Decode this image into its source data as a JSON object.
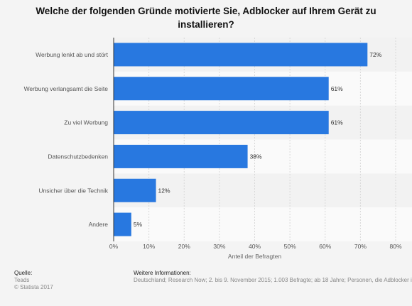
{
  "title": "Welche der folgenden Gründe motivierte Sie, Adblocker auf Ihrem Gerät zu installieren?",
  "chart_data": {
    "type": "bar",
    "orientation": "horizontal",
    "categories": [
      "Werbung lenkt ab und stört",
      "Werbung verlangsamt die Seite",
      "Zu viel Werbung",
      "Datenschutzbedenken",
      "Unsicher über die Technik",
      "Andere"
    ],
    "values": [
      72,
      61,
      61,
      38,
      12,
      5
    ],
    "value_labels": [
      "72%",
      "61%",
      "61%",
      "38%",
      "12%",
      "5%"
    ],
    "xlabel": "Anteil der Befragten",
    "ylabel": "",
    "xlim": [
      0,
      80
    ],
    "x_ticks": [
      "0%",
      "10%",
      "20%",
      "30%",
      "40%",
      "50%",
      "60%",
      "70%",
      "80%"
    ],
    "bar_color": "#2878e0",
    "grid": true
  },
  "footer": {
    "source_heading": "Quelle:",
    "source_name": "Teads",
    "copyright": "© Statista 2017",
    "info_heading": "Weitere Informationen:",
    "info_text": "Deutschland; Research Now; 2. bis 9. November 2015; 1.003 Befragte; ab 18 Jahre; Personen, die Adblocker installiert haben"
  }
}
